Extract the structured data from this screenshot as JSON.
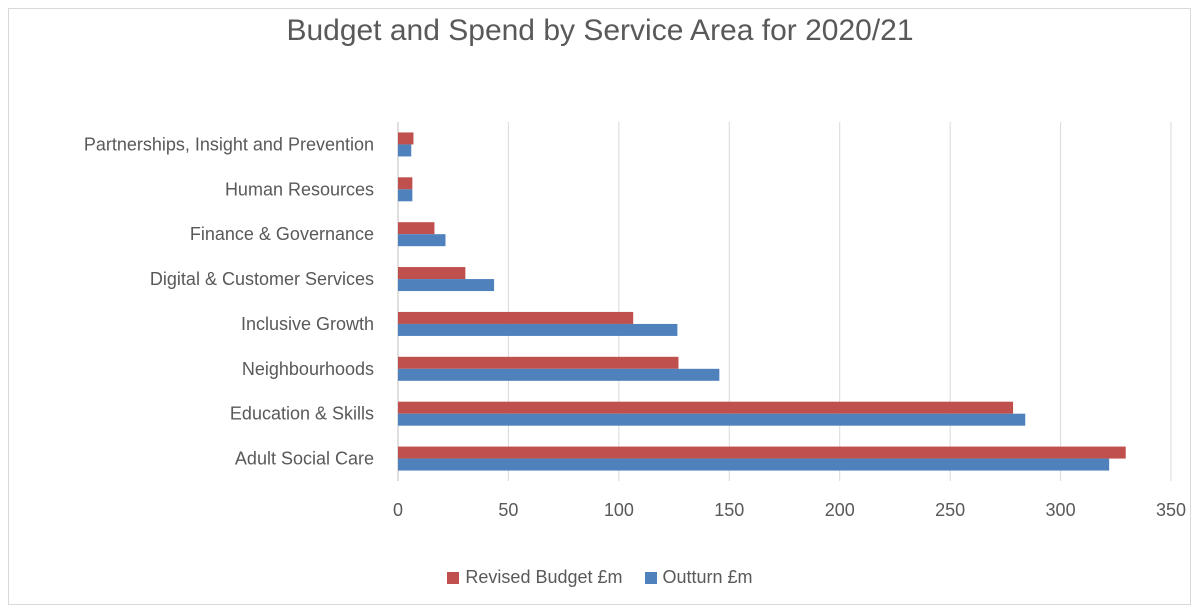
{
  "chart_data": {
    "type": "bar",
    "orientation": "horizontal",
    "title": "Budget and Spend by Service Area for 2020/21",
    "xlabel": "",
    "ylabel": "",
    "categories": [
      "Adult Social Care",
      "Education & Skills",
      "Neighbourhoods",
      "Inclusive Growth",
      "Digital & Customer Services",
      "Finance & Governance",
      "Human Resources",
      "Partnerships, Insight and Prevention"
    ],
    "series": [
      {
        "name": "Revised Budget £m",
        "color": "#c0504d",
        "values": [
          329.5,
          278.5,
          127,
          106.5,
          30.5,
          16.5,
          6.5,
          7
        ]
      },
      {
        "name": "Outturn £m",
        "color": "#4f81bd",
        "values": [
          322,
          284,
          145.5,
          126.5,
          43.5,
          21.5,
          6.5,
          6
        ]
      }
    ],
    "xlim": [
      0,
      350
    ],
    "xticks": [
      "0",
      "50",
      "100",
      "150",
      "200",
      "250",
      "300",
      "350"
    ],
    "grid": true,
    "legend_position": "bottom"
  }
}
